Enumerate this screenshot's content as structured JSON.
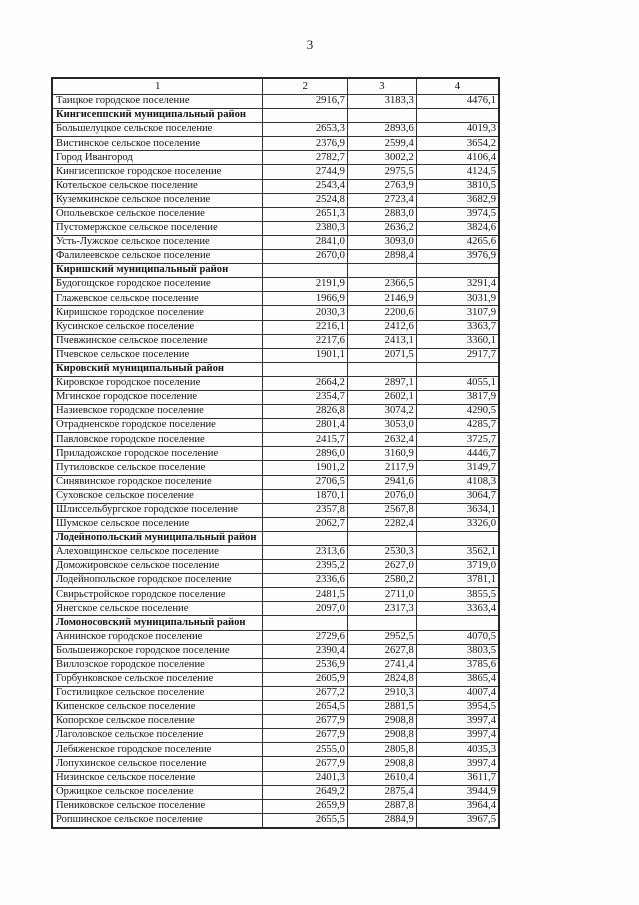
{
  "page": {
    "number": "3"
  },
  "table": {
    "column_headers": [
      "1",
      "2",
      "3",
      "4"
    ],
    "rows": [
      {
        "section": false,
        "name": "Таицкое городское поселение",
        "values": [
          "2916,7",
          "3183,3",
          "4476,1"
        ]
      },
      {
        "section": true,
        "name": "Кингисеппский муниципальный район",
        "values": [
          "",
          "",
          ""
        ]
      },
      {
        "section": false,
        "name": "Большелуцкое сельское поселение",
        "values": [
          "2653,3",
          "2893,6",
          "4019,3"
        ]
      },
      {
        "section": false,
        "name": "Вистинское сельское поселение",
        "values": [
          "2376,9",
          "2599,4",
          "3654,2"
        ]
      },
      {
        "section": false,
        "name": "Город Ивангород",
        "values": [
          "2782,7",
          "3002,2",
          "4106,4"
        ]
      },
      {
        "section": false,
        "name": "Кингисеппское городское поселение",
        "values": [
          "2744,9",
          "2975,5",
          "4124,5"
        ]
      },
      {
        "section": false,
        "name": "Котельское сельское поселение",
        "values": [
          "2543,4",
          "2763,9",
          "3810,5"
        ]
      },
      {
        "section": false,
        "name": "Куземкинское сельское поселение",
        "values": [
          "2524,8",
          "2723,4",
          "3682,9"
        ]
      },
      {
        "section": false,
        "name": "Опольевское сельское поселение",
        "values": [
          "2651,3",
          "2883,0",
          "3974,5"
        ]
      },
      {
        "section": false,
        "name": "Пустомержское сельское поселение",
        "values": [
          "2380,3",
          "2636,2",
          "3824,6"
        ]
      },
      {
        "section": false,
        "name": "Усть-Лужское сельское поселение",
        "values": [
          "2841,0",
          "3093,0",
          "4265,6"
        ]
      },
      {
        "section": false,
        "name": "Фалилеевское сельское поселение",
        "values": [
          "2670,0",
          "2898,4",
          "3976,9"
        ]
      },
      {
        "section": true,
        "name": "Киришский муниципальный район",
        "values": [
          "",
          "",
          ""
        ]
      },
      {
        "section": false,
        "name": "Будогощское городское поселение",
        "values": [
          "2191,9",
          "2366,5",
          "3291,4"
        ]
      },
      {
        "section": false,
        "name": "Глажевское сельское поселение",
        "values": [
          "1966,9",
          "2146,9",
          "3031,9"
        ]
      },
      {
        "section": false,
        "name": "Киришское городское поселение",
        "values": [
          "2030,3",
          "2200,6",
          "3107,9"
        ]
      },
      {
        "section": false,
        "name": "Кусинское сельское поселение",
        "values": [
          "2216,1",
          "2412,6",
          "3363,7"
        ]
      },
      {
        "section": false,
        "name": "Пчевжинское сельское поселение",
        "values": [
          "2217,6",
          "2413,1",
          "3360,1"
        ]
      },
      {
        "section": false,
        "name": "Пчевское сельское поселение",
        "values": [
          "1901,1",
          "2071,5",
          "2917,7"
        ]
      },
      {
        "section": true,
        "name": "Кировский муниципальный район",
        "values": [
          "",
          "",
          ""
        ]
      },
      {
        "section": false,
        "name": "Кировское городское поселение",
        "values": [
          "2664,2",
          "2897,1",
          "4055,1"
        ]
      },
      {
        "section": false,
        "name": "Мгинское городское поселение",
        "values": [
          "2354,7",
          "2602,1",
          "3817,9"
        ]
      },
      {
        "section": false,
        "name": "Назиевское городское поселение",
        "values": [
          "2826,8",
          "3074,2",
          "4290,5"
        ]
      },
      {
        "section": false,
        "name": "Отрадненское городское поселение",
        "values": [
          "2801,4",
          "3053,0",
          "4285,7"
        ]
      },
      {
        "section": false,
        "name": "Павловское городское поселение",
        "values": [
          "2415,7",
          "2632,4",
          "3725,7"
        ]
      },
      {
        "section": false,
        "name": "Приладожское городское поселение",
        "values": [
          "2896,0",
          "3160,9",
          "4446,7"
        ]
      },
      {
        "section": false,
        "name": "Путиловское сельское поселение",
        "values": [
          "1901,2",
          "2117,9",
          "3149,7"
        ]
      },
      {
        "section": false,
        "name": "Синявинское городское поселение",
        "values": [
          "2706,5",
          "2941,6",
          "4108,3"
        ]
      },
      {
        "section": false,
        "name": "Суховское сельское поселение",
        "values": [
          "1870,1",
          "2076,0",
          "3064,7"
        ]
      },
      {
        "section": false,
        "name": "Шлиссельбургское городское поселение",
        "values": [
          "2357,8",
          "2567,8",
          "3634,1"
        ]
      },
      {
        "section": false,
        "name": "Шумское сельское поселение",
        "values": [
          "2062,7",
          "2282,4",
          "3326,0"
        ]
      },
      {
        "section": true,
        "name": "Лодейнопольский муниципальный район",
        "values": [
          "",
          "",
          ""
        ]
      },
      {
        "section": false,
        "name": "Алеховщинское сельское поселение",
        "values": [
          "2313,6",
          "2530,3",
          "3562,1"
        ]
      },
      {
        "section": false,
        "name": "Доможировское сельское поселение",
        "values": [
          "2395,2",
          "2627,0",
          "3719,0"
        ]
      },
      {
        "section": false,
        "name": "Лодейнопольское городское поселение",
        "values": [
          "2336,6",
          "2580,2",
          "3781,1"
        ]
      },
      {
        "section": false,
        "name": "Свирьстройское городское поселение",
        "values": [
          "2481,5",
          "2711,0",
          "3855,5"
        ]
      },
      {
        "section": false,
        "name": "Янегское сельское поселение",
        "values": [
          "2097,0",
          "2317,3",
          "3363,4"
        ]
      },
      {
        "section": true,
        "name": "Ломоносовский муниципальный район",
        "values": [
          "",
          "",
          ""
        ]
      },
      {
        "section": false,
        "name": "Аннинское городское поселение",
        "values": [
          "2729,6",
          "2952,5",
          "4070,5"
        ]
      },
      {
        "section": false,
        "name": "Большеижорское городское поселение",
        "values": [
          "2390,4",
          "2627,8",
          "3803,5"
        ]
      },
      {
        "section": false,
        "name": "Виллозское городское поселение",
        "values": [
          "2536,9",
          "2741,4",
          "3785,6"
        ]
      },
      {
        "section": false,
        "name": "Горбунковское сельское поселение",
        "values": [
          "2605,9",
          "2824,8",
          "3865,4"
        ]
      },
      {
        "section": false,
        "name": "Гостилицкое сельское поселение",
        "values": [
          "2677,2",
          "2910,3",
          "4007,4"
        ]
      },
      {
        "section": false,
        "name": "Кипенское сельское поселение",
        "values": [
          "2654,5",
          "2881,5",
          "3954,5"
        ]
      },
      {
        "section": false,
        "name": "Копорское сельское поселение",
        "values": [
          "2677,9",
          "2908,8",
          "3997,4"
        ]
      },
      {
        "section": false,
        "name": "Лаголовское сельское поселение",
        "values": [
          "2677,9",
          "2908,8",
          "3997,4"
        ]
      },
      {
        "section": false,
        "name": "Лебяженское городское поселение",
        "values": [
          "2555,0",
          "2805,8",
          "4035,3"
        ]
      },
      {
        "section": false,
        "name": "Лопухинское сельское поселение",
        "values": [
          "2677,9",
          "2908,8",
          "3997,4"
        ]
      },
      {
        "section": false,
        "name": "Низинское сельское поселение",
        "values": [
          "2401,3",
          "2610,4",
          "3611,7"
        ]
      },
      {
        "section": false,
        "name": "Оржицкое сельское поселение",
        "values": [
          "2649,2",
          "2875,4",
          "3944,9"
        ]
      },
      {
        "section": false,
        "name": "Пениковское сельское поселение",
        "values": [
          "2659,9",
          "2887,8",
          "3964,4"
        ]
      },
      {
        "section": false,
        "name": "Ропшинское сельское поселение",
        "values": [
          "2655,5",
          "2884,9",
          "3967,5"
        ]
      }
    ]
  }
}
